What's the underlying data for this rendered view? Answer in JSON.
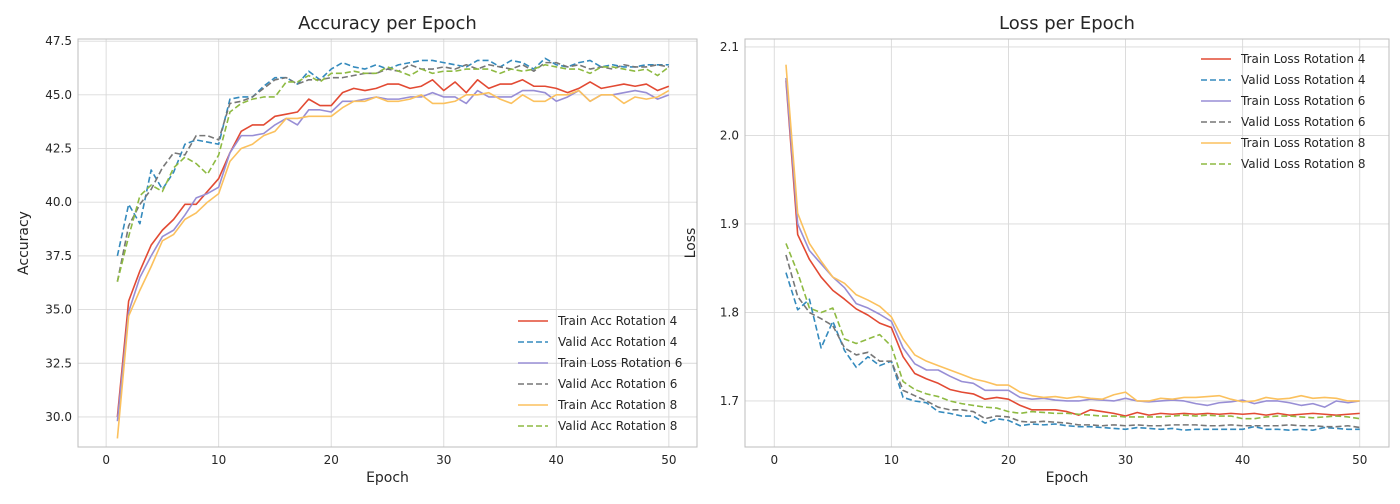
{
  "chart_data": [
    {
      "type": "line",
      "title": "Accuracy per Epoch",
      "xlabel": "Epoch",
      "ylabel": "Accuracy",
      "xlim": [
        -2.5,
        52.5
      ],
      "ylim": [
        28.6,
        47.6
      ],
      "xticks": [
        0,
        10,
        20,
        30,
        40,
        50
      ],
      "yticks": [
        30.0,
        32.5,
        35.0,
        37.5,
        40.0,
        42.5,
        45.0,
        47.5
      ],
      "ytick_labels": [
        "30.0",
        "32.5",
        "35.0",
        "37.5",
        "40.0",
        "42.5",
        "45.0",
        "47.5"
      ],
      "grid": true,
      "legend": "lower-right",
      "x": [
        1,
        2,
        3,
        4,
        5,
        6,
        7,
        8,
        9,
        10,
        11,
        12,
        13,
        14,
        15,
        16,
        17,
        18,
        19,
        20,
        21,
        22,
        23,
        24,
        25,
        26,
        27,
        28,
        29,
        30,
        31,
        32,
        33,
        34,
        35,
        36,
        37,
        38,
        39,
        40,
        41,
        42,
        43,
        44,
        45,
        46,
        47,
        48,
        49,
        50
      ],
      "series": [
        {
          "name": "Train Acc Rotation 4",
          "color": "#E24A33",
          "dash": "solid",
          "values": [
            30.0,
            35.4,
            36.8,
            38.0,
            38.7,
            39.2,
            39.9,
            39.9,
            40.5,
            41.1,
            42.3,
            43.3,
            43.6,
            43.6,
            44.0,
            44.1,
            44.2,
            44.8,
            44.5,
            44.5,
            45.1,
            45.3,
            45.2,
            45.3,
            45.5,
            45.5,
            45.3,
            45.4,
            45.7,
            45.2,
            45.6,
            45.1,
            45.7,
            45.3,
            45.5,
            45.5,
            45.7,
            45.4,
            45.4,
            45.3,
            45.1,
            45.3,
            45.6,
            45.3,
            45.4,
            45.5,
            45.4,
            45.5,
            45.2,
            45.4
          ]
        },
        {
          "name": "Valid Acc Rotation 4",
          "color": "#348ABD",
          "dash": "dashed",
          "values": [
            37.5,
            39.9,
            39.0,
            41.5,
            40.6,
            41.4,
            42.7,
            42.9,
            42.8,
            42.7,
            44.8,
            44.9,
            44.9,
            45.4,
            45.8,
            45.8,
            45.5,
            46.1,
            45.7,
            46.2,
            46.5,
            46.3,
            46.2,
            46.4,
            46.2,
            46.4,
            46.5,
            46.6,
            46.6,
            46.5,
            46.4,
            46.3,
            46.6,
            46.6,
            46.3,
            46.6,
            46.5,
            46.2,
            46.7,
            46.4,
            46.3,
            46.5,
            46.6,
            46.3,
            46.4,
            46.3,
            46.3,
            46.4,
            46.4,
            46.4
          ]
        },
        {
          "name": "Train Loss Rotation 6",
          "color": "#988ED5",
          "dash": "solid",
          "values": [
            29.8,
            34.9,
            36.5,
            37.5,
            38.4,
            38.7,
            39.4,
            40.2,
            40.4,
            40.7,
            42.3,
            43.1,
            43.1,
            43.2,
            43.6,
            43.9,
            43.6,
            44.3,
            44.3,
            44.2,
            44.7,
            44.7,
            44.8,
            44.9,
            44.8,
            44.8,
            44.9,
            44.9,
            45.1,
            44.9,
            44.9,
            44.6,
            45.2,
            44.9,
            44.9,
            44.9,
            45.2,
            45.2,
            45.1,
            44.7,
            44.9,
            45.2,
            44.7,
            45.0,
            45.0,
            45.1,
            45.2,
            45.1,
            44.8,
            45.0
          ]
        },
        {
          "name": "Valid Acc Rotation 6",
          "color": "#777777",
          "dash": "dashed",
          "values": [
            36.3,
            38.9,
            39.9,
            40.6,
            41.6,
            42.3,
            42.2,
            43.1,
            43.1,
            42.9,
            44.6,
            44.7,
            44.9,
            45.3,
            45.7,
            45.8,
            45.5,
            45.7,
            45.7,
            45.8,
            45.8,
            45.9,
            46.0,
            46.0,
            46.2,
            46.1,
            46.4,
            46.2,
            46.2,
            46.3,
            46.2,
            46.4,
            46.2,
            46.4,
            46.3,
            46.2,
            46.4,
            46.1,
            46.5,
            46.5,
            46.3,
            46.4,
            46.2,
            46.3,
            46.2,
            46.4,
            46.3,
            46.3,
            46.4,
            46.3
          ]
        },
        {
          "name": "Train Acc Rotation 8",
          "color": "#FBC15E",
          "dash": "solid",
          "values": [
            29.0,
            34.7,
            35.9,
            37.0,
            38.2,
            38.5,
            39.2,
            39.5,
            40.0,
            40.4,
            41.9,
            42.5,
            42.7,
            43.1,
            43.3,
            43.9,
            43.9,
            44.0,
            44.0,
            44.0,
            44.4,
            44.7,
            44.7,
            44.9,
            44.7,
            44.7,
            44.8,
            45.0,
            44.6,
            44.6,
            44.7,
            45.0,
            45.0,
            45.1,
            44.8,
            44.6,
            45.0,
            44.7,
            44.7,
            45.0,
            45.0,
            45.2,
            44.7,
            45.0,
            45.0,
            44.6,
            44.9,
            44.8,
            44.9,
            45.2
          ]
        },
        {
          "name": "Valid Acc Rotation 8",
          "color": "#8EBA42",
          "dash": "dashed",
          "values": [
            36.3,
            38.4,
            40.3,
            40.8,
            40.5,
            41.6,
            42.1,
            41.8,
            41.3,
            42.2,
            44.2,
            44.6,
            44.8,
            44.9,
            44.9,
            45.6,
            45.6,
            45.9,
            45.6,
            46.0,
            46.0,
            46.1,
            46.0,
            46.0,
            46.3,
            46.1,
            45.9,
            46.2,
            46.0,
            46.1,
            46.1,
            46.2,
            46.2,
            46.2,
            46.0,
            46.2,
            46.1,
            46.2,
            46.4,
            46.3,
            46.2,
            46.2,
            46.0,
            46.3,
            46.3,
            46.2,
            46.1,
            46.2,
            45.9,
            46.3
          ]
        }
      ]
    },
    {
      "type": "line",
      "title": "Loss per Epoch",
      "xlabel": "Epoch",
      "ylabel": "Loss",
      "xlim": [
        -2.5,
        52.5
      ],
      "ylim": [
        1.648,
        2.109
      ],
      "xticks": [
        0,
        10,
        20,
        30,
        40,
        50
      ],
      "yticks": [
        1.7,
        1.8,
        1.9,
        2.0,
        2.1
      ],
      "ytick_labels": [
        "1.7",
        "1.8",
        "1.9",
        "2.0",
        "2.1"
      ],
      "grid": true,
      "legend": "upper-right",
      "x": [
        1,
        2,
        3,
        4,
        5,
        6,
        7,
        8,
        9,
        10,
        11,
        12,
        13,
        14,
        15,
        16,
        17,
        18,
        19,
        20,
        21,
        22,
        23,
        24,
        25,
        26,
        27,
        28,
        29,
        30,
        31,
        32,
        33,
        34,
        35,
        36,
        37,
        38,
        39,
        40,
        41,
        42,
        43,
        44,
        45,
        46,
        47,
        48,
        49,
        50
      ],
      "series": [
        {
          "name": "Train Loss Rotation 4",
          "color": "#E24A33",
          "dash": "solid",
          "values": [
            2.062,
            1.888,
            1.86,
            1.84,
            1.825,
            1.815,
            1.804,
            1.797,
            1.788,
            1.783,
            1.75,
            1.731,
            1.725,
            1.72,
            1.713,
            1.71,
            1.708,
            1.702,
            1.704,
            1.702,
            1.695,
            1.69,
            1.69,
            1.69,
            1.688,
            1.684,
            1.69,
            1.688,
            1.686,
            1.683,
            1.687,
            1.684,
            1.686,
            1.685,
            1.686,
            1.685,
            1.686,
            1.685,
            1.686,
            1.685,
            1.686,
            1.684,
            1.686,
            1.684,
            1.685,
            1.686,
            1.685,
            1.684,
            1.685,
            1.686
          ]
        },
        {
          "name": "Valid Loss Rotation 4",
          "color": "#348ABD",
          "dash": "dashed",
          "values": [
            1.845,
            1.803,
            1.815,
            1.76,
            1.79,
            1.757,
            1.738,
            1.75,
            1.74,
            1.745,
            1.704,
            1.7,
            1.698,
            1.688,
            1.686,
            1.683,
            1.683,
            1.675,
            1.68,
            1.678,
            1.672,
            1.674,
            1.673,
            1.674,
            1.672,
            1.671,
            1.671,
            1.67,
            1.669,
            1.668,
            1.67,
            1.669,
            1.668,
            1.669,
            1.667,
            1.668,
            1.668,
            1.668,
            1.668,
            1.668,
            1.671,
            1.668,
            1.668,
            1.667,
            1.668,
            1.667,
            1.67,
            1.669,
            1.668,
            1.668
          ]
        },
        {
          "name": "Train Loss Rotation 6",
          "color": "#988ED5",
          "dash": "solid",
          "values": [
            2.065,
            1.9,
            1.87,
            1.855,
            1.84,
            1.828,
            1.81,
            1.805,
            1.798,
            1.79,
            1.76,
            1.742,
            1.735,
            1.735,
            1.728,
            1.722,
            1.72,
            1.712,
            1.712,
            1.712,
            1.704,
            1.702,
            1.703,
            1.701,
            1.7,
            1.7,
            1.702,
            1.701,
            1.7,
            1.703,
            1.7,
            1.699,
            1.7,
            1.701,
            1.7,
            1.697,
            1.695,
            1.698,
            1.699,
            1.701,
            1.697,
            1.7,
            1.7,
            1.698,
            1.695,
            1.697,
            1.693,
            1.7,
            1.698,
            1.7
          ]
        },
        {
          "name": "Valid Loss Rotation 6",
          "color": "#777777",
          "dash": "dashed",
          "values": [
            1.865,
            1.818,
            1.8,
            1.793,
            1.785,
            1.76,
            1.752,
            1.755,
            1.745,
            1.745,
            1.712,
            1.706,
            1.7,
            1.693,
            1.69,
            1.69,
            1.688,
            1.68,
            1.683,
            1.682,
            1.677,
            1.676,
            1.677,
            1.676,
            1.675,
            1.673,
            1.673,
            1.672,
            1.673,
            1.672,
            1.673,
            1.672,
            1.672,
            1.673,
            1.673,
            1.673,
            1.672,
            1.672,
            1.673,
            1.672,
            1.672,
            1.672,
            1.672,
            1.673,
            1.672,
            1.672,
            1.671,
            1.671,
            1.672,
            1.67
          ]
        },
        {
          "name": "Train Loss Rotation 8",
          "color": "#FBC15E",
          "dash": "solid",
          "values": [
            2.08,
            1.912,
            1.878,
            1.858,
            1.84,
            1.833,
            1.82,
            1.814,
            1.807,
            1.795,
            1.77,
            1.752,
            1.745,
            1.74,
            1.735,
            1.73,
            1.725,
            1.722,
            1.718,
            1.718,
            1.71,
            1.706,
            1.704,
            1.705,
            1.703,
            1.705,
            1.703,
            1.702,
            1.707,
            1.71,
            1.7,
            1.7,
            1.703,
            1.702,
            1.704,
            1.704,
            1.705,
            1.706,
            1.702,
            1.699,
            1.7,
            1.704,
            1.702,
            1.703,
            1.706,
            1.703,
            1.704,
            1.703,
            1.7,
            1.7
          ]
        },
        {
          "name": "Valid Loss Rotation 8",
          "color": "#8EBA42",
          "dash": "dashed",
          "values": [
            1.878,
            1.845,
            1.805,
            1.8,
            1.805,
            1.77,
            1.765,
            1.77,
            1.775,
            1.762,
            1.722,
            1.713,
            1.708,
            1.705,
            1.7,
            1.697,
            1.695,
            1.693,
            1.692,
            1.688,
            1.686,
            1.688,
            1.687,
            1.686,
            1.686,
            1.685,
            1.684,
            1.683,
            1.683,
            1.682,
            1.682,
            1.682,
            1.682,
            1.683,
            1.684,
            1.683,
            1.684,
            1.683,
            1.683,
            1.68,
            1.68,
            1.682,
            1.683,
            1.683,
            1.682,
            1.681,
            1.682,
            1.683,
            1.682,
            1.68
          ]
        }
      ]
    }
  ]
}
